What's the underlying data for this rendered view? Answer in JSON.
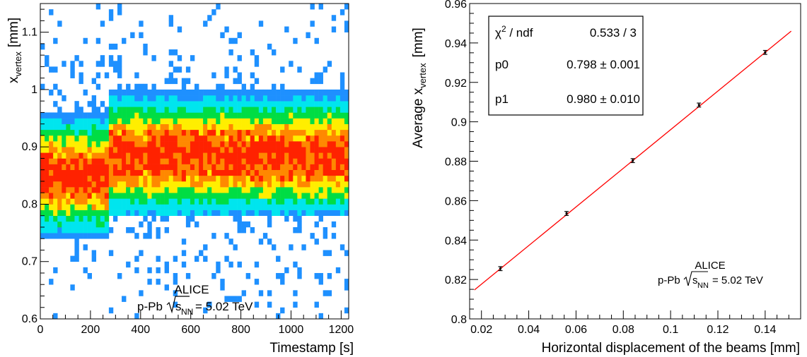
{
  "chart_data": [
    {
      "type": "heatmap",
      "xlabel": "Timestamp [s]",
      "ylabel_main": "x",
      "ylabel_sub": "vertex",
      "ylabel_unit": "[mm]",
      "xlim": [
        0,
        1230
      ],
      "ylim": [
        0.6,
        1.15
      ],
      "xticks": [
        0,
        200,
        400,
        600,
        800,
        1000,
        1200
      ],
      "xtick_labels": [
        "0",
        "200",
        "400",
        "600",
        "800",
        "1000",
        "1200"
      ],
      "yticks": [
        0.6,
        0.7,
        0.8,
        0.9,
        1.0,
        1.1
      ],
      "ytick_labels": [
        "0.6",
        "0.7",
        "0.8",
        "0.9",
        "1",
        "1.1"
      ],
      "annotation": {
        "experiment": "ALICE",
        "system": "p-Pb",
        "sqrt_s_sub": "NN",
        "energy": "= 5.02 TeV"
      },
      "distribution": {
        "mean_x_vertex": 0.885,
        "sigma_x_vertex": 0.05,
        "early_mean_x_vertex": 0.85,
        "early_time_end_s": 280
      },
      "colors": {
        "low": "#1e90ff",
        "mid_low": "#00e5ee",
        "mid": "#00dd44",
        "mid_high": "#ffee00",
        "high": "#ff8800",
        "max": "#ff2200"
      }
    },
    {
      "type": "scatter",
      "xlabel": "Horizontal displacement of the beams [mm]",
      "ylabel_main": "Average x",
      "ylabel_sub": "vertex",
      "ylabel_unit": "[mm]",
      "xlim": [
        0.015,
        0.155
      ],
      "ylim": [
        0.8,
        0.96
      ],
      "xticks": [
        0.02,
        0.04,
        0.06,
        0.08,
        0.1,
        0.12,
        0.14
      ],
      "xtick_labels": [
        "0.02",
        "0.04",
        "0.06",
        "0.08",
        "0.1",
        "0.12",
        "0.14"
      ],
      "yticks": [
        0.8,
        0.82,
        0.84,
        0.86,
        0.88,
        0.9,
        0.92,
        0.94,
        0.96
      ],
      "ytick_labels": [
        "0.8",
        "0.82",
        "0.84",
        "0.86",
        "0.88",
        "0.9",
        "0.92",
        "0.94",
        "0.96"
      ],
      "points": [
        {
          "x": 0.028,
          "y": 0.8255,
          "err": 0.001
        },
        {
          "x": 0.056,
          "y": 0.8535,
          "err": 0.001
        },
        {
          "x": 0.084,
          "y": 0.8803,
          "err": 0.001
        },
        {
          "x": 0.112,
          "y": 0.9085,
          "err": 0.001
        },
        {
          "x": 0.14,
          "y": 0.9352,
          "err": 0.001
        }
      ],
      "fit": {
        "p0": 0.798,
        "p1": 0.98,
        "x_from": 0.017,
        "x_to": 0.151,
        "color": "#ff0000"
      },
      "stats_box": {
        "rows": [
          {
            "label_main": "χ",
            "label_sup": "2",
            "label_rest": " / ndf",
            "value": "0.533 / 3"
          },
          {
            "label_main": "p0",
            "label_sup": "",
            "label_rest": "",
            "value": "0.798 ± 0.001"
          },
          {
            "label_main": "p1",
            "label_sup": "",
            "label_rest": "",
            "value": "0.980 ± 0.010"
          }
        ]
      },
      "annotation": {
        "experiment": "ALICE",
        "system": "p-Pb",
        "sqrt_s_sub": "NN",
        "energy": "= 5.02 TeV"
      }
    }
  ]
}
